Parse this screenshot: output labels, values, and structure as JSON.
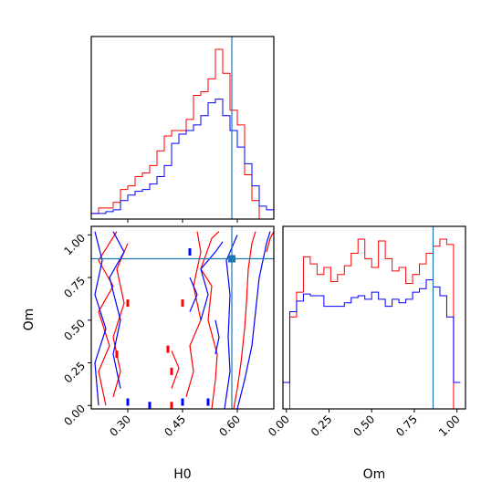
{
  "chart_data": {
    "type": "corner",
    "variables": [
      "H0",
      "Om"
    ],
    "truth": {
      "H0": 0.585,
      "Om": 0.86
    },
    "colors": {
      "series_a": "#ff0000",
      "series_b": "#0000ff",
      "truth": "#1f77b4"
    },
    "ranges": {
      "H0": [
        0.2,
        0.7
      ],
      "Om": [
        -0.02,
        1.05
      ]
    },
    "ticks": {
      "H0": [
        "0.30",
        "0.45",
        "0.60"
      ],
      "Om": [
        "0.00",
        "0.25",
        "0.50",
        "0.75",
        "1.00"
      ]
    },
    "tick_values": {
      "H0": [
        0.3,
        0.45,
        0.6
      ],
      "Om": [
        0.0,
        0.25,
        0.5,
        0.75,
        1.0
      ]
    },
    "xlabels": {
      "H0": "H0",
      "Om": "Om"
    },
    "ylabel": "Om",
    "hist_H0": {
      "bin_edges": [
        0.2,
        0.22,
        0.24,
        0.26,
        0.28,
        0.3,
        0.32,
        0.34,
        0.36,
        0.38,
        0.4,
        0.42,
        0.44,
        0.46,
        0.48,
        0.5,
        0.52,
        0.54,
        0.56,
        0.58,
        0.6,
        0.62,
        0.64,
        0.66,
        0.68,
        0.7
      ],
      "series": [
        {
          "name": "",
          "color": "series_a",
          "counts": [
            0.03,
            0.06,
            0.06,
            0.09,
            0.16,
            0.18,
            0.23,
            0.25,
            0.29,
            0.37,
            0.45,
            0.48,
            0.48,
            0.54,
            0.67,
            0.69,
            0.76,
            0.92,
            0.79,
            0.59,
            0.51,
            0.24,
            0.1,
            0,
            0,
            0
          ]
        },
        {
          "name": "",
          "color": "series_b",
          "counts": [
            0.03,
            0.03,
            0.04,
            0.05,
            0.1,
            0.13,
            0.15,
            0.16,
            0.19,
            0.23,
            0.29,
            0.41,
            0.46,
            0.48,
            0.51,
            0.56,
            0.63,
            0.65,
            0.56,
            0.48,
            0.39,
            0.3,
            0.18,
            0.07,
            0.05,
            0
          ]
        }
      ]
    },
    "hist_Om": {
      "bin_edges": [
        -0.02,
        0.02,
        0.06,
        0.1,
        0.14,
        0.18,
        0.22,
        0.26,
        0.3,
        0.34,
        0.38,
        0.42,
        0.46,
        0.5,
        0.54,
        0.58,
        0.62,
        0.66,
        0.7,
        0.74,
        0.78,
        0.82,
        0.86,
        0.9,
        0.94,
        0.98,
        1.02
      ],
      "series": [
        {
          "name": "",
          "color": "series_a",
          "counts": [
            0,
            0.52,
            0.66,
            0.86,
            0.82,
            0.76,
            0.8,
            0.72,
            0.76,
            0.81,
            0.88,
            0.96,
            0.85,
            0.8,
            0.95,
            0.85,
            0.78,
            0.8,
            0.71,
            0.76,
            0.82,
            0.88,
            0.92,
            0.96,
            0.93,
            0,
            0
          ]
        },
        {
          "name": "",
          "color": "series_b",
          "counts": [
            0.15,
            0.55,
            0.61,
            0.65,
            0.64,
            0.64,
            0.58,
            0.58,
            0.58,
            0.6,
            0.63,
            0.64,
            0.62,
            0.66,
            0.62,
            0.58,
            0.62,
            0.6,
            0.62,
            0.66,
            0.68,
            0.73,
            0.69,
            0.64,
            0.52,
            0.15,
            0.15
          ]
        }
      ]
    },
    "contours": [
      {
        "color": "series_a",
        "points": [
          [
            0.59,
            -0.02
          ],
          [
            0.6,
            0.1
          ],
          [
            0.61,
            0.25
          ],
          [
            0.62,
            0.45
          ],
          [
            0.625,
            0.6
          ],
          [
            0.63,
            0.8
          ],
          [
            0.64,
            0.95
          ],
          [
            0.65,
            1.02
          ]
        ]
      },
      {
        "color": "series_a",
        "points": [
          [
            0.53,
            -0.02
          ],
          [
            0.54,
            0.15
          ],
          [
            0.545,
            0.3
          ],
          [
            0.52,
            0.5
          ],
          [
            0.53,
            0.7
          ],
          [
            0.5,
            0.8
          ],
          [
            0.53,
            0.98
          ],
          [
            0.55,
            1.02
          ]
        ]
      },
      {
        "color": "series_a",
        "points": [
          [
            0.46,
            0.05
          ],
          [
            0.48,
            0.2
          ],
          [
            0.47,
            0.35
          ],
          [
            0.5,
            0.5
          ],
          [
            0.48,
            0.7
          ],
          [
            0.5,
            0.9
          ],
          [
            0.49,
            1.02
          ]
        ]
      },
      {
        "color": "series_a",
        "points": [
          [
            0.24,
            0.0
          ],
          [
            0.22,
            0.2
          ],
          [
            0.25,
            0.35
          ],
          [
            0.22,
            0.55
          ],
          [
            0.26,
            0.7
          ],
          [
            0.22,
            0.85
          ],
          [
            0.27,
            1.02
          ]
        ]
      },
      {
        "color": "series_a",
        "points": [
          [
            0.26,
            0.05
          ],
          [
            0.28,
            0.2
          ],
          [
            0.26,
            0.4
          ],
          [
            0.29,
            0.6
          ],
          [
            0.27,
            0.8
          ],
          [
            0.3,
            0.95
          ]
        ]
      },
      {
        "color": "series_a",
        "points": [
          [
            0.42,
            0.1
          ],
          [
            0.44,
            0.22
          ],
          [
            0.42,
            0.32
          ]
        ]
      },
      {
        "color": "series_a",
        "points": [
          [
            0.68,
            0.9
          ],
          [
            0.69,
            0.98
          ],
          [
            0.7,
            1.02
          ]
        ]
      },
      {
        "color": "series_b",
        "points": [
          [
            0.6,
            -0.02
          ],
          [
            0.62,
            0.15
          ],
          [
            0.64,
            0.35
          ],
          [
            0.65,
            0.55
          ],
          [
            0.66,
            0.75
          ],
          [
            0.68,
            0.95
          ],
          [
            0.69,
            1.02
          ]
        ]
      },
      {
        "color": "series_b",
        "points": [
          [
            0.565,
            -0.02
          ],
          [
            0.58,
            0.2
          ],
          [
            0.575,
            0.4
          ],
          [
            0.58,
            0.65
          ],
          [
            0.57,
            0.85
          ],
          [
            0.6,
            1.0
          ]
        ]
      },
      {
        "color": "series_b",
        "points": [
          [
            0.5,
            0.5
          ],
          [
            0.52,
            0.65
          ],
          [
            0.5,
            0.8
          ],
          [
            0.54,
            0.9
          ],
          [
            0.56,
            0.96
          ]
        ]
      },
      {
        "color": "series_b",
        "points": [
          [
            0.22,
            0.0
          ],
          [
            0.21,
            0.25
          ],
          [
            0.24,
            0.45
          ],
          [
            0.21,
            0.65
          ],
          [
            0.23,
            0.85
          ],
          [
            0.21,
            1.02
          ]
        ]
      },
      {
        "color": "series_b",
        "points": [
          [
            0.28,
            0.1
          ],
          [
            0.26,
            0.3
          ],
          [
            0.28,
            0.5
          ],
          [
            0.25,
            0.75
          ],
          [
            0.29,
            0.9
          ],
          [
            0.26,
            1.02
          ]
        ]
      },
      {
        "color": "series_b",
        "points": [
          [
            0.47,
            0.55
          ],
          [
            0.49,
            0.65
          ],
          [
            0.47,
            0.75
          ]
        ]
      },
      {
        "color": "series_b",
        "points": [
          [
            0.54,
            0.3
          ],
          [
            0.55,
            0.4
          ],
          [
            0.54,
            0.5
          ]
        ]
      }
    ],
    "markers": [
      {
        "color": "series_a",
        "points": [
          [
            0.27,
            0.3
          ],
          [
            0.41,
            0.33
          ],
          [
            0.42,
            0.2
          ],
          [
            0.42,
            0.0
          ],
          [
            0.45,
            0.6
          ],
          [
            0.3,
            0.6
          ]
        ]
      },
      {
        "color": "series_b",
        "points": [
          [
            0.36,
            0.0
          ],
          [
            0.45,
            0.02
          ],
          [
            0.47,
            0.9
          ],
          [
            0.3,
            0.02
          ],
          [
            0.52,
            0.02
          ]
        ]
      }
    ]
  }
}
